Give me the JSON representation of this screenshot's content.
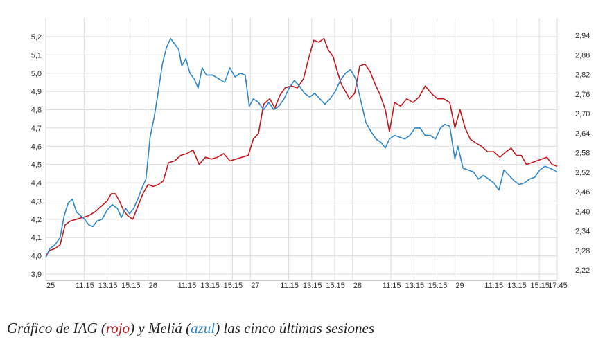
{
  "chart_data": {
    "type": "line",
    "left_axis": {
      "ticks": [
        "3,9",
        "4,0",
        "4,1",
        "4,2",
        "4,3",
        "4,4",
        "4,5",
        "4,6",
        "4,7",
        "4,8",
        "4,9",
        "5,0",
        "5,1",
        "5,2"
      ],
      "min": 3.9,
      "max": 5.2
    },
    "right_axis": {
      "ticks": [
        "2,22",
        "2,28",
        "2,34",
        "2,40",
        "2,46",
        "2,52",
        "2,58",
        "2,64",
        "2,70",
        "2,76",
        "2,82",
        "2,88",
        "2,94"
      ],
      "min": 2.22,
      "max": 2.94
    },
    "x_ticks": [
      {
        "label": "25",
        "pos": 0.0
      },
      {
        "label": "11:15",
        "pos": 0.75
      },
      {
        "label": "13:15",
        "pos": 1.2
      },
      {
        "label": "15:15",
        "pos": 1.65
      },
      {
        "label": "26",
        "pos": 2.0
      },
      {
        "label": "11:15",
        "pos": 2.75
      },
      {
        "label": "13:15",
        "pos": 3.2
      },
      {
        "label": "15:15",
        "pos": 3.65
      },
      {
        "label": "27",
        "pos": 4.0
      },
      {
        "label": "11:15",
        "pos": 4.75
      },
      {
        "label": "13:15",
        "pos": 5.2
      },
      {
        "label": "15:15",
        "pos": 5.65
      },
      {
        "label": "28",
        "pos": 6.0
      },
      {
        "label": "11:15",
        "pos": 6.75
      },
      {
        "label": "13:15",
        "pos": 7.2
      },
      {
        "label": "15:15",
        "pos": 7.65
      },
      {
        "label": "29",
        "pos": 8.0
      },
      {
        "label": "11:15",
        "pos": 8.75
      },
      {
        "label": "13:15",
        "pos": 9.2
      },
      {
        "label": "15:15",
        "pos": 9.65
      },
      {
        "label": "17:45",
        "pos": 10.0
      }
    ],
    "grid": true,
    "series": [
      {
        "axis": "left",
        "color": "#c0181e",
        "points": [
          [
            0.0,
            4.0
          ],
          [
            0.08,
            4.03
          ],
          [
            0.18,
            4.04
          ],
          [
            0.28,
            4.06
          ],
          [
            0.38,
            4.17
          ],
          [
            0.48,
            4.19
          ],
          [
            0.6,
            4.2
          ],
          [
            0.72,
            4.21
          ],
          [
            0.84,
            4.22
          ],
          [
            0.96,
            4.24
          ],
          [
            1.08,
            4.27
          ],
          [
            1.2,
            4.3
          ],
          [
            1.28,
            4.34
          ],
          [
            1.36,
            4.34
          ],
          [
            1.44,
            4.3
          ],
          [
            1.52,
            4.25
          ],
          [
            1.6,
            4.22
          ],
          [
            1.7,
            4.2
          ],
          [
            1.8,
            4.27
          ],
          [
            1.9,
            4.34
          ],
          [
            2.0,
            4.39
          ],
          [
            2.1,
            4.38
          ],
          [
            2.2,
            4.39
          ],
          [
            2.3,
            4.41
          ],
          [
            2.4,
            4.51
          ],
          [
            2.52,
            4.52
          ],
          [
            2.64,
            4.55
          ],
          [
            2.76,
            4.56
          ],
          [
            2.88,
            4.58
          ],
          [
            3.0,
            4.5
          ],
          [
            3.12,
            4.54
          ],
          [
            3.24,
            4.53
          ],
          [
            3.36,
            4.54
          ],
          [
            3.48,
            4.56
          ],
          [
            3.6,
            4.52
          ],
          [
            3.72,
            4.53
          ],
          [
            3.84,
            4.54
          ],
          [
            3.96,
            4.55
          ],
          [
            4.06,
            4.64
          ],
          [
            4.16,
            4.67
          ],
          [
            4.26,
            4.83
          ],
          [
            4.38,
            4.86
          ],
          [
            4.48,
            4.81
          ],
          [
            4.58,
            4.88
          ],
          [
            4.68,
            4.92
          ],
          [
            4.8,
            4.93
          ],
          [
            4.92,
            4.92
          ],
          [
            5.04,
            4.97
          ],
          [
            5.14,
            5.08
          ],
          [
            5.24,
            5.18
          ],
          [
            5.34,
            5.17
          ],
          [
            5.44,
            5.19
          ],
          [
            5.52,
            5.13
          ],
          [
            5.62,
            5.09
          ],
          [
            5.7,
            5.01
          ],
          [
            5.78,
            4.94
          ],
          [
            5.86,
            4.9
          ],
          [
            5.94,
            4.86
          ],
          [
            6.04,
            4.89
          ],
          [
            6.14,
            5.04
          ],
          [
            6.24,
            5.05
          ],
          [
            6.34,
            5.01
          ],
          [
            6.44,
            4.94
          ],
          [
            6.54,
            4.88
          ],
          [
            6.64,
            4.8
          ],
          [
            6.72,
            4.68
          ],
          [
            6.82,
            4.84
          ],
          [
            6.94,
            4.82
          ],
          [
            7.06,
            4.86
          ],
          [
            7.18,
            4.84
          ],
          [
            7.3,
            4.87
          ],
          [
            7.42,
            4.93
          ],
          [
            7.54,
            4.89
          ],
          [
            7.66,
            4.86
          ],
          [
            7.78,
            4.86
          ],
          [
            7.9,
            4.84
          ],
          [
            8.0,
            4.7
          ],
          [
            8.1,
            4.8
          ],
          [
            8.2,
            4.7
          ],
          [
            8.3,
            4.64
          ],
          [
            8.4,
            4.62
          ],
          [
            8.52,
            4.6
          ],
          [
            8.64,
            4.57
          ],
          [
            8.76,
            4.57
          ],
          [
            8.88,
            4.54
          ],
          [
            9.0,
            4.57
          ],
          [
            9.1,
            4.59
          ],
          [
            9.2,
            4.55
          ],
          [
            9.3,
            4.55
          ],
          [
            9.4,
            4.5
          ],
          [
            9.5,
            4.51
          ],
          [
            9.6,
            4.52
          ],
          [
            9.7,
            4.53
          ],
          [
            9.8,
            4.54
          ],
          [
            9.9,
            4.5
          ],
          [
            10.0,
            4.49
          ]
        ]
      },
      {
        "axis": "left",
        "color": "#2f86c8",
        "points": [
          [
            0.0,
            3.99
          ],
          [
            0.08,
            4.04
          ],
          [
            0.18,
            4.06
          ],
          [
            0.28,
            4.1
          ],
          [
            0.36,
            4.22
          ],
          [
            0.44,
            4.29
          ],
          [
            0.52,
            4.31
          ],
          [
            0.6,
            4.24
          ],
          [
            0.68,
            4.22
          ],
          [
            0.76,
            4.2
          ],
          [
            0.84,
            4.17
          ],
          [
            0.92,
            4.16
          ],
          [
            1.0,
            4.19
          ],
          [
            1.1,
            4.2
          ],
          [
            1.2,
            4.25
          ],
          [
            1.3,
            4.28
          ],
          [
            1.4,
            4.26
          ],
          [
            1.48,
            4.21
          ],
          [
            1.56,
            4.26
          ],
          [
            1.64,
            4.23
          ],
          [
            1.72,
            4.26
          ],
          [
            1.8,
            4.31
          ],
          [
            1.88,
            4.37
          ],
          [
            1.96,
            4.42
          ],
          [
            2.04,
            4.65
          ],
          [
            2.12,
            4.76
          ],
          [
            2.2,
            4.9
          ],
          [
            2.28,
            5.05
          ],
          [
            2.36,
            5.14
          ],
          [
            2.44,
            5.19
          ],
          [
            2.52,
            5.16
          ],
          [
            2.6,
            5.13
          ],
          [
            2.66,
            5.04
          ],
          [
            2.74,
            5.08
          ],
          [
            2.82,
            5.0
          ],
          [
            2.9,
            4.97
          ],
          [
            2.98,
            4.92
          ],
          [
            3.06,
            5.03
          ],
          [
            3.14,
            4.99
          ],
          [
            3.26,
            4.99
          ],
          [
            3.38,
            4.97
          ],
          [
            3.5,
            4.95
          ],
          [
            3.6,
            5.03
          ],
          [
            3.7,
            4.98
          ],
          [
            3.8,
            5.0
          ],
          [
            3.9,
            4.99
          ],
          [
            3.98,
            4.82
          ],
          [
            4.06,
            4.86
          ],
          [
            4.16,
            4.84
          ],
          [
            4.26,
            4.8
          ],
          [
            4.36,
            4.84
          ],
          [
            4.46,
            4.8
          ],
          [
            4.56,
            4.82
          ],
          [
            4.66,
            4.86
          ],
          [
            4.76,
            4.92
          ],
          [
            4.86,
            4.96
          ],
          [
            4.96,
            4.93
          ],
          [
            5.06,
            4.89
          ],
          [
            5.16,
            4.87
          ],
          [
            5.26,
            4.89
          ],
          [
            5.36,
            4.86
          ],
          [
            5.46,
            4.83
          ],
          [
            5.56,
            4.86
          ],
          [
            5.66,
            4.9
          ],
          [
            5.76,
            4.96
          ],
          [
            5.86,
            5.0
          ],
          [
            5.96,
            5.02
          ],
          [
            6.06,
            4.97
          ],
          [
            6.16,
            4.85
          ],
          [
            6.26,
            4.73
          ],
          [
            6.36,
            4.68
          ],
          [
            6.46,
            4.64
          ],
          [
            6.56,
            4.62
          ],
          [
            6.64,
            4.59
          ],
          [
            6.72,
            4.64
          ],
          [
            6.82,
            4.66
          ],
          [
            6.92,
            4.65
          ],
          [
            7.02,
            4.64
          ],
          [
            7.12,
            4.66
          ],
          [
            7.22,
            4.7
          ],
          [
            7.32,
            4.7
          ],
          [
            7.42,
            4.66
          ],
          [
            7.52,
            4.66
          ],
          [
            7.62,
            4.64
          ],
          [
            7.72,
            4.7
          ],
          [
            7.8,
            4.72
          ],
          [
            7.9,
            4.71
          ],
          [
            8.0,
            4.53
          ],
          [
            8.06,
            4.6
          ],
          [
            8.16,
            4.48
          ],
          [
            8.26,
            4.47
          ],
          [
            8.36,
            4.46
          ],
          [
            8.46,
            4.42
          ],
          [
            8.56,
            4.44
          ],
          [
            8.66,
            4.42
          ],
          [
            8.76,
            4.4
          ],
          [
            8.86,
            4.36
          ],
          [
            8.96,
            4.47
          ],
          [
            9.06,
            4.44
          ],
          [
            9.16,
            4.41
          ],
          [
            9.26,
            4.39
          ],
          [
            9.36,
            4.4
          ],
          [
            9.46,
            4.42
          ],
          [
            9.56,
            4.43
          ],
          [
            9.66,
            4.47
          ],
          [
            9.76,
            4.49
          ],
          [
            9.86,
            4.48
          ],
          [
            10.0,
            4.46
          ]
        ]
      }
    ]
  },
  "caption": {
    "prefix": "Gráfico de IAG (",
    "red_word": "rojo",
    "middle": ") y Meliá (",
    "blue_word": "azul",
    "suffix": ") las cinco últimas sesiones"
  }
}
